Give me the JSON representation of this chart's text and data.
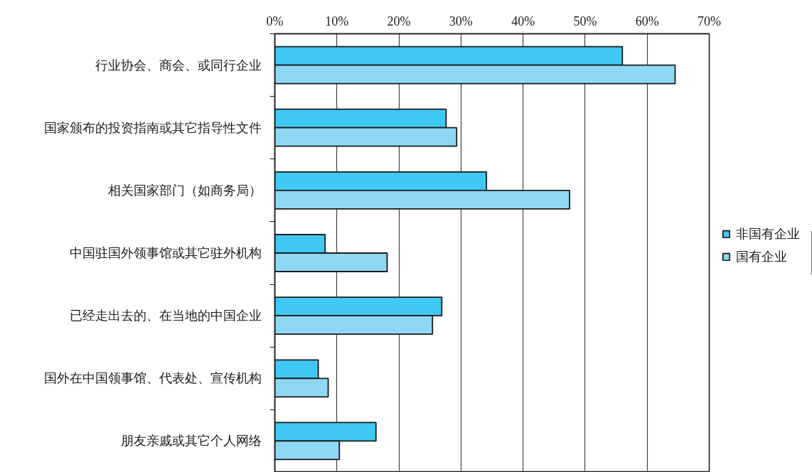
{
  "chart_data": {
    "type": "bar",
    "orientation": "horizontal",
    "categories": [
      "行业协会、商会、或同行企业",
      "国家颁布的投资指南或其它指导性文件",
      "相关国家部门（如商务局）",
      "中国驻国外领事馆或其它驻外机构",
      "已经走出去的、在当地的中国企业",
      "国外在中国领事馆、代表处、宣传机构",
      "朋友亲戚或其它个人网络"
    ],
    "series": [
      {
        "name": "非国有企业",
        "color": "#40c8f4",
        "values": [
          56.0,
          27.6,
          34.1,
          8.1,
          26.9,
          7.0,
          16.3
        ]
      },
      {
        "name": "国有企业",
        "color": "#8ed8f6",
        "values": [
          64.5,
          29.3,
          47.5,
          18.1,
          25.4,
          8.6,
          10.4
        ]
      }
    ],
    "xlim": [
      0,
      70
    ],
    "xticks": [
      {
        "value": 0,
        "label": "0%"
      },
      {
        "value": 10,
        "label": "10%"
      },
      {
        "value": 20,
        "label": "20%"
      },
      {
        "value": 30,
        "label": "30%"
      },
      {
        "value": 40,
        "label": "40%"
      },
      {
        "value": 50,
        "label": "50%"
      },
      {
        "value": 60,
        "label": "60%"
      },
      {
        "value": 70,
        "label": "70%"
      }
    ],
    "grid": "x",
    "legend": "right"
  }
}
